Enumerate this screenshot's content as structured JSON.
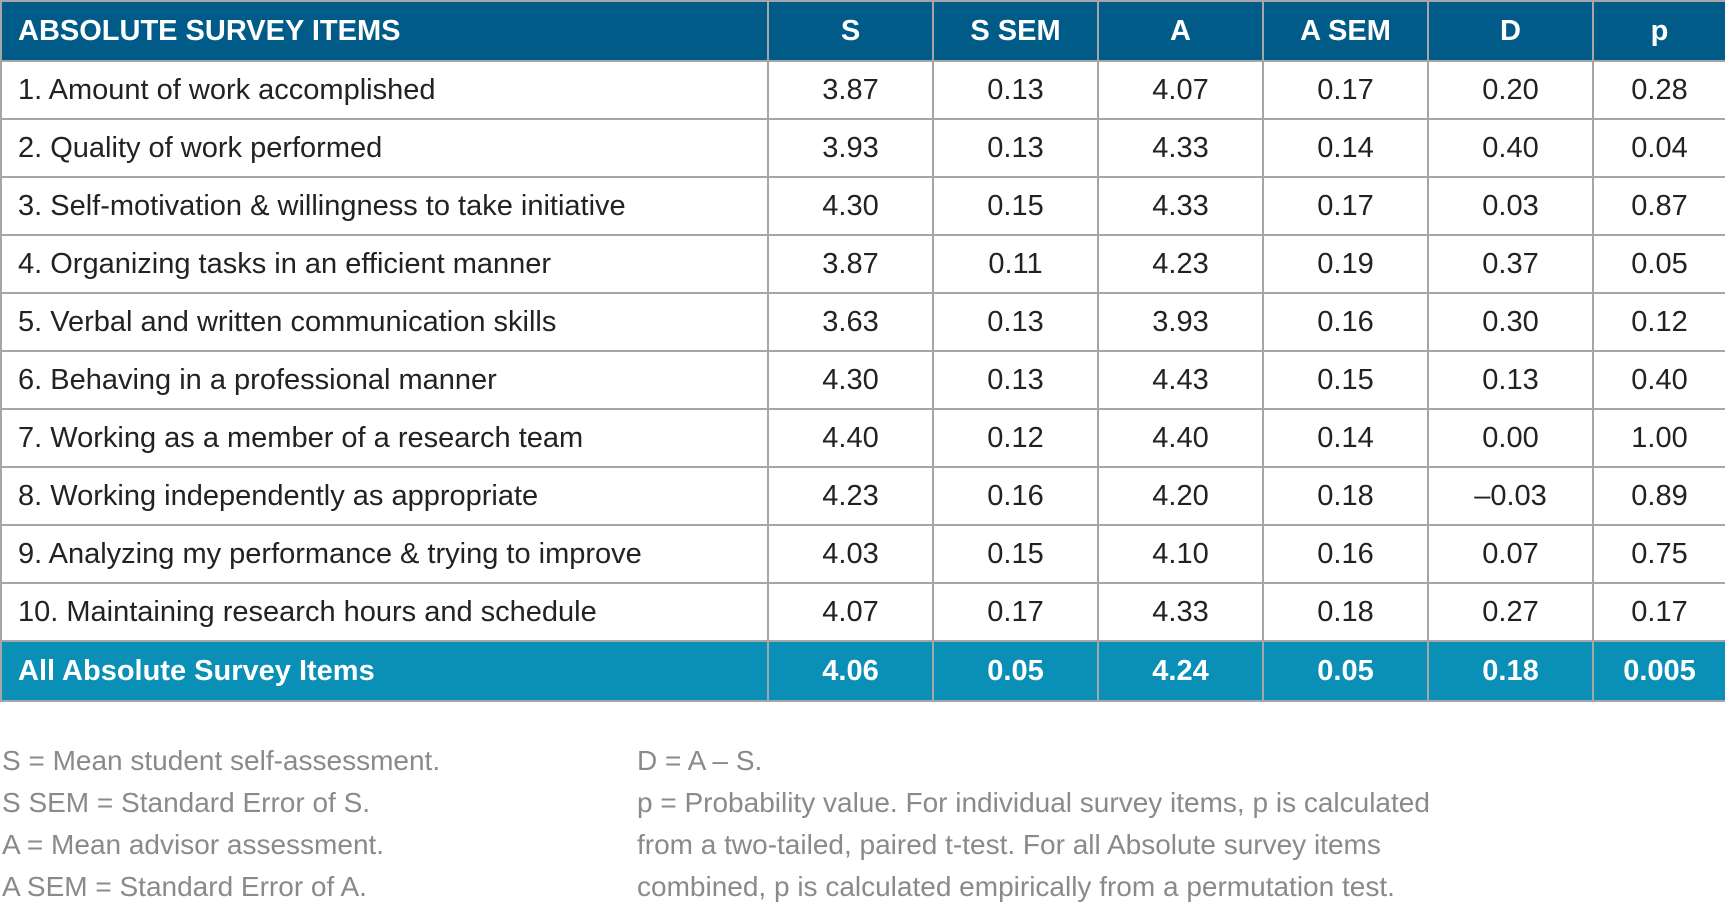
{
  "table": {
    "headers": [
      "ABSOLUTE SURVEY ITEMS",
      "S",
      "S SEM",
      "A",
      "A SEM",
      "D",
      "p"
    ],
    "rows": [
      [
        "1. Amount of work accomplished",
        "3.87",
        "0.13",
        "4.07",
        "0.17",
        "0.20",
        "0.28"
      ],
      [
        "2. Quality of work performed",
        "3.93",
        "0.13",
        "4.33",
        "0.14",
        "0.40",
        "0.04"
      ],
      [
        "3. Self-motivation & willingness to take initiative",
        "4.30",
        "0.15",
        "4.33",
        "0.17",
        "0.03",
        "0.87"
      ],
      [
        "4. Organizing tasks in an efficient manner",
        "3.87",
        "0.11",
        "4.23",
        "0.19",
        "0.37",
        "0.05"
      ],
      [
        "5. Verbal and written communication skills",
        "3.63",
        "0.13",
        "3.93",
        "0.16",
        "0.30",
        "0.12"
      ],
      [
        "6. Behaving in a professional manner",
        "4.30",
        "0.13",
        "4.43",
        "0.15",
        "0.13",
        "0.40"
      ],
      [
        "7. Working as a member of a research team",
        "4.40",
        "0.12",
        "4.40",
        "0.14",
        "0.00",
        "1.00"
      ],
      [
        "8. Working independently as appropriate",
        "4.23",
        "0.16",
        "4.20",
        "0.18",
        "–0.03",
        "0.89"
      ],
      [
        "9. Analyzing my performance & trying to improve",
        "4.03",
        "0.15",
        "4.10",
        "0.16",
        "0.07",
        "0.75"
      ],
      [
        "10. Maintaining research hours and schedule",
        "4.07",
        "0.17",
        "4.33",
        "0.18",
        "0.27",
        "0.17"
      ]
    ],
    "total": [
      "All Absolute Survey Items",
      "4.06",
      "0.05",
      "4.24",
      "0.05",
      "0.18",
      "0.005"
    ]
  },
  "notes": {
    "left": [
      "S = Mean student self-assessment.",
      "S SEM = Standard Error of S.",
      "A = Mean advisor assessment.",
      "A SEM = Standard Error of A."
    ],
    "right": [
      "D = A – S.",
      "p = Probability value. For individual survey items, p is calculated",
      "from a two-tailed, paired t-test. For all Absolute survey items",
      "combined, p is calculated empirically from a permutation test."
    ]
  },
  "colors": {
    "header_bg": "#005b88",
    "total_bg": "#0a8fb7",
    "grid": "#a6a6a6",
    "note_text": "#8a8a8a"
  }
}
